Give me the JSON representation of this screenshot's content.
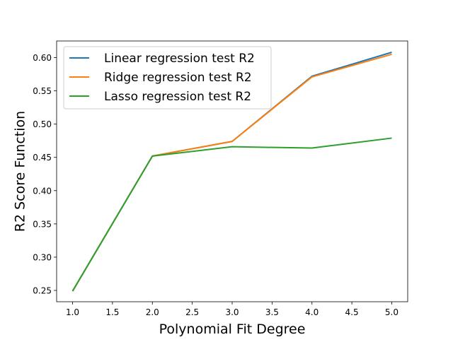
{
  "chart_data": {
    "type": "line",
    "title": "",
    "xlabel": "Polynomial Fit Degree",
    "ylabel": "R2 Score Function",
    "x": [
      1.0,
      2.0,
      3.0,
      4.0,
      5.0
    ],
    "xlim": [
      0.8,
      5.2
    ],
    "ylim": [
      0.233,
      0.625
    ],
    "xticks": [
      1.0,
      1.5,
      2.0,
      2.5,
      3.0,
      3.5,
      4.0,
      4.5,
      5.0
    ],
    "xtick_labels": [
      "1.0",
      "1.5",
      "2.0",
      "2.5",
      "3.0",
      "3.5",
      "4.0",
      "4.5",
      "5.0"
    ],
    "yticks": [
      0.25,
      0.3,
      0.35,
      0.4,
      0.45,
      0.5,
      0.55,
      0.6
    ],
    "ytick_labels": [
      "0.25",
      "0.30",
      "0.35",
      "0.40",
      "0.45",
      "0.50",
      "0.55",
      "0.60"
    ],
    "grid": false,
    "legend_position": "top-left",
    "series": [
      {
        "name": "Linear regression test R2",
        "color": "#1f77b4",
        "values": [
          0.249,
          0.452,
          0.474,
          0.572,
          0.608
        ]
      },
      {
        "name": "Ridge regression test R2",
        "color": "#ff7f0e",
        "values": [
          0.249,
          0.452,
          0.474,
          0.571,
          0.605
        ]
      },
      {
        "name": "Lasso regression test R2",
        "color": "#2ca02c",
        "values": [
          0.249,
          0.452,
          0.466,
          0.464,
          0.479
        ]
      }
    ]
  }
}
